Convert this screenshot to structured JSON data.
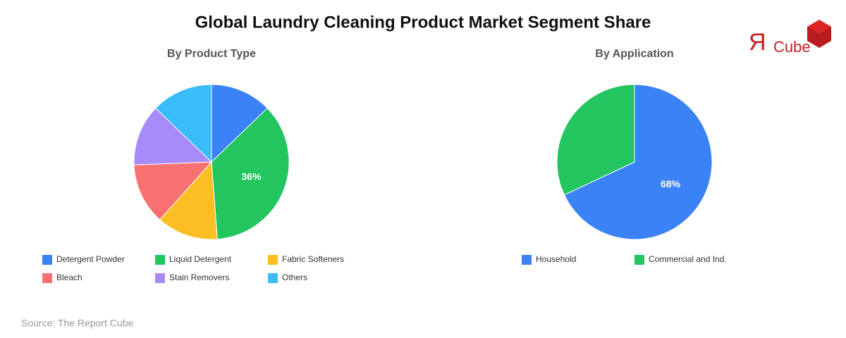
{
  "title": "Global Laundry Cleaning Product Market Segment Share",
  "logo": {
    "mark": "Я",
    "text": "Cube"
  },
  "source": "Source: The Report Cube",
  "chart_data": [
    {
      "type": "pie",
      "title": "By Product Type",
      "categories": [
        "Detergent Powder",
        "Liquid Detergent",
        "Fabric Softeners",
        "Bleach",
        "Stain Removers",
        "Others"
      ],
      "values": [
        12.8,
        36,
        12.8,
        12.8,
        12.8,
        12.8
      ],
      "value_labels": [
        null,
        "36%",
        null,
        null,
        null,
        null
      ],
      "colors": [
        "#3b82f6",
        "#22c55e",
        "#fbbf24",
        "#f87171",
        "#a78bfa",
        "#38bdf8"
      ]
    },
    {
      "type": "pie",
      "title": "By Application",
      "categories": [
        "Household",
        "Commercial and Ind."
      ],
      "values": [
        68,
        32
      ],
      "value_labels": [
        "68%",
        null
      ],
      "colors": [
        "#3b82f6",
        "#22c55e"
      ]
    }
  ]
}
